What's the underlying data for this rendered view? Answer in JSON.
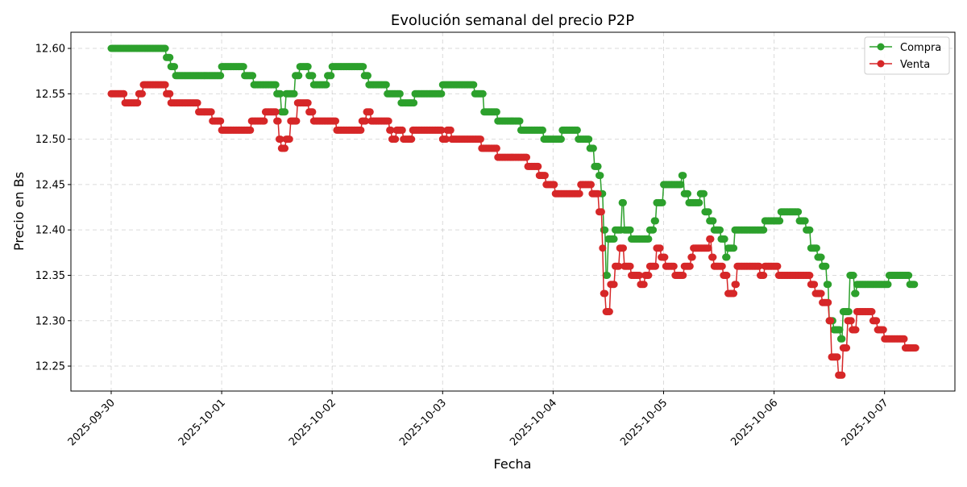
{
  "chart_data": {
    "type": "line",
    "title": "Evolución semanal del precio P2P",
    "xlabel": "Fecha",
    "ylabel": "Precio en Bs",
    "x_ticks": [
      "2025-09-30",
      "2025-10-01",
      "2025-10-02",
      "2025-10-03",
      "2025-10-04",
      "2025-10-05",
      "2025-10-06",
      "2025-10-07"
    ],
    "y_ticks": [
      "12.25",
      "12.30",
      "12.35",
      "12.40",
      "12.45",
      "12.50",
      "12.55",
      "12.60"
    ],
    "xlim": [
      "2025-09-29 15:15",
      "2025-10-07 15:17"
    ],
    "ylim": [
      12.2225,
      12.6178
    ],
    "grid": true,
    "legend_position": "top-right",
    "series": [
      {
        "name": "Compra",
        "color": "#2ca02c",
        "points": [
          [
            "2025-09-30 00:00",
            12.6
          ],
          [
            "2025-09-30 12:00",
            12.59
          ],
          [
            "2025-09-30 13:00",
            12.58
          ],
          [
            "2025-09-30 14:00",
            12.57
          ],
          [
            "2025-10-01 00:00",
            12.58
          ],
          [
            "2025-10-01 05:00",
            12.57
          ],
          [
            "2025-10-01 07:00",
            12.56
          ],
          [
            "2025-10-01 12:00",
            12.55
          ],
          [
            "2025-10-01 13:00",
            12.53
          ],
          [
            "2025-10-01 14:00",
            12.55
          ],
          [
            "2025-10-01 16:00",
            12.57
          ],
          [
            "2025-10-01 17:00",
            12.58
          ],
          [
            "2025-10-01 19:00",
            12.57
          ],
          [
            "2025-10-01 20:00",
            12.56
          ],
          [
            "2025-10-01 23:00",
            12.57
          ],
          [
            "2025-10-02 00:00",
            12.58
          ],
          [
            "2025-10-02 07:00",
            12.57
          ],
          [
            "2025-10-02 08:00",
            12.56
          ],
          [
            "2025-10-02 12:00",
            12.55
          ],
          [
            "2025-10-02 15:00",
            12.54
          ],
          [
            "2025-10-02 18:00",
            12.55
          ],
          [
            "2025-10-03 00:00",
            12.56
          ],
          [
            "2025-10-03 07:00",
            12.55
          ],
          [
            "2025-10-03 09:00",
            12.53
          ],
          [
            "2025-10-03 12:00",
            12.52
          ],
          [
            "2025-10-03 17:00",
            12.51
          ],
          [
            "2025-10-03 22:00",
            12.5
          ],
          [
            "2025-10-04 02:00",
            12.51
          ],
          [
            "2025-10-04 05:30",
            12.5
          ],
          [
            "2025-10-04 08:00",
            12.49
          ],
          [
            "2025-10-04 09:00",
            12.47
          ],
          [
            "2025-10-04 10:00",
            12.46
          ],
          [
            "2025-10-04 10:30",
            12.44
          ],
          [
            "2025-10-04 11:00",
            12.4
          ],
          [
            "2025-10-04 11:30",
            12.35
          ],
          [
            "2025-10-04 12:00",
            12.39
          ],
          [
            "2025-10-04 13:30",
            12.4
          ],
          [
            "2025-10-04 15:00",
            12.43
          ],
          [
            "2025-10-04 15:30",
            12.4
          ],
          [
            "2025-10-04 17:00",
            12.39
          ],
          [
            "2025-10-04 21:00",
            12.4
          ],
          [
            "2025-10-04 22:00",
            12.41
          ],
          [
            "2025-10-04 22:30",
            12.43
          ],
          [
            "2025-10-05 00:00",
            12.45
          ],
          [
            "2025-10-05 04:00",
            12.46
          ],
          [
            "2025-10-05 04:30",
            12.44
          ],
          [
            "2025-10-05 05:30",
            12.43
          ],
          [
            "2025-10-05 08:00",
            12.44
          ],
          [
            "2025-10-05 09:00",
            12.42
          ],
          [
            "2025-10-05 10:00",
            12.41
          ],
          [
            "2025-10-05 11:00",
            12.4
          ],
          [
            "2025-10-05 12:30",
            12.39
          ],
          [
            "2025-10-05 13:30",
            12.37
          ],
          [
            "2025-10-05 14:00",
            12.38
          ],
          [
            "2025-10-05 15:30",
            12.4
          ],
          [
            "2025-10-05 22:00",
            12.41
          ],
          [
            "2025-10-06 01:30",
            12.42
          ],
          [
            "2025-10-06 05:30",
            12.41
          ],
          [
            "2025-10-06 07:00",
            12.4
          ],
          [
            "2025-10-06 08:00",
            12.38
          ],
          [
            "2025-10-06 09:30",
            12.37
          ],
          [
            "2025-10-06 10:30",
            12.36
          ],
          [
            "2025-10-06 11:30",
            12.34
          ],
          [
            "2025-10-06 12:00",
            12.3
          ],
          [
            "2025-10-06 13:00",
            12.29
          ],
          [
            "2025-10-06 14:30",
            12.28
          ],
          [
            "2025-10-06 15:00",
            12.31
          ],
          [
            "2025-10-06 16:30",
            12.35
          ],
          [
            "2025-10-06 17:30",
            12.33
          ],
          [
            "2025-10-06 18:00",
            12.34
          ],
          [
            "2025-10-07 01:00",
            12.35
          ],
          [
            "2025-10-07 05:30",
            12.34
          ],
          [
            "2025-10-07 06:30",
            12.34
          ]
        ]
      },
      {
        "name": "Venta",
        "color": "#d62728",
        "points": [
          [
            "2025-09-30 00:00",
            12.55
          ],
          [
            "2025-09-30 03:00",
            12.54
          ],
          [
            "2025-09-30 06:00",
            12.55
          ],
          [
            "2025-09-30 07:00",
            12.56
          ],
          [
            "2025-09-30 12:00",
            12.55
          ],
          [
            "2025-09-30 13:00",
            12.54
          ],
          [
            "2025-09-30 19:00",
            12.53
          ],
          [
            "2025-09-30 22:00",
            12.52
          ],
          [
            "2025-10-01 00:00",
            12.51
          ],
          [
            "2025-10-01 06:30",
            12.52
          ],
          [
            "2025-10-01 09:30",
            12.53
          ],
          [
            "2025-10-01 12:00",
            12.52
          ],
          [
            "2025-10-01 12:30",
            12.5
          ],
          [
            "2025-10-01 13:00",
            12.49
          ],
          [
            "2025-10-01 14:00",
            12.5
          ],
          [
            "2025-10-01 15:00",
            12.52
          ],
          [
            "2025-10-01 16:30",
            12.54
          ],
          [
            "2025-10-01 19:00",
            12.53
          ],
          [
            "2025-10-01 20:00",
            12.52
          ],
          [
            "2025-10-02 01:00",
            12.51
          ],
          [
            "2025-10-02 06:30",
            12.52
          ],
          [
            "2025-10-02 07:30",
            12.53
          ],
          [
            "2025-10-02 08:30",
            12.52
          ],
          [
            "2025-10-02 12:30",
            12.51
          ],
          [
            "2025-10-02 13:00",
            12.5
          ],
          [
            "2025-10-02 14:00",
            12.51
          ],
          [
            "2025-10-02 15:30",
            12.5
          ],
          [
            "2025-10-02 17:30",
            12.51
          ],
          [
            "2025-10-03 00:00",
            12.5
          ],
          [
            "2025-10-03 01:00",
            12.51
          ],
          [
            "2025-10-03 02:00",
            12.5
          ],
          [
            "2025-10-03 08:30",
            12.49
          ],
          [
            "2025-10-03 12:00",
            12.48
          ],
          [
            "2025-10-03 18:30",
            12.47
          ],
          [
            "2025-10-03 21:00",
            12.46
          ],
          [
            "2025-10-03 22:30",
            12.45
          ],
          [
            "2025-10-04 00:30",
            12.44
          ],
          [
            "2025-10-04 06:00",
            12.45
          ],
          [
            "2025-10-04 08:30",
            12.44
          ],
          [
            "2025-10-04 10:00",
            12.42
          ],
          [
            "2025-10-04 10:45",
            12.38
          ],
          [
            "2025-10-04 11:00",
            12.33
          ],
          [
            "2025-10-04 11:30",
            12.31
          ],
          [
            "2025-10-04 12:30",
            12.34
          ],
          [
            "2025-10-04 13:30",
            12.36
          ],
          [
            "2025-10-04 14:30",
            12.38
          ],
          [
            "2025-10-04 15:30",
            12.36
          ],
          [
            "2025-10-04 17:00",
            12.35
          ],
          [
            "2025-10-04 19:00",
            12.34
          ],
          [
            "2025-10-04 20:00",
            12.35
          ],
          [
            "2025-10-04 21:00",
            12.36
          ],
          [
            "2025-10-04 22:30",
            12.38
          ],
          [
            "2025-10-04 23:30",
            12.37
          ],
          [
            "2025-10-05 00:30",
            12.36
          ],
          [
            "2025-10-05 02:30",
            12.35
          ],
          [
            "2025-10-05 04:30",
            12.36
          ],
          [
            "2025-10-05 06:00",
            12.37
          ],
          [
            "2025-10-05 06:30",
            12.38
          ],
          [
            "2025-10-05 10:00",
            12.39
          ],
          [
            "2025-10-05 10:30",
            12.37
          ],
          [
            "2025-10-05 11:00",
            12.36
          ],
          [
            "2025-10-05 13:00",
            12.35
          ],
          [
            "2025-10-05 14:00",
            12.33
          ],
          [
            "2025-10-05 15:30",
            12.34
          ],
          [
            "2025-10-05 16:00",
            12.36
          ],
          [
            "2025-10-05 21:00",
            12.35
          ],
          [
            "2025-10-05 22:00",
            12.36
          ],
          [
            "2025-10-06 01:00",
            12.35
          ],
          [
            "2025-10-06 08:00",
            12.34
          ],
          [
            "2025-10-06 09:00",
            12.33
          ],
          [
            "2025-10-06 10:30",
            12.32
          ],
          [
            "2025-10-06 12:00",
            12.3
          ],
          [
            "2025-10-06 12:30",
            12.26
          ],
          [
            "2025-10-06 14:00",
            12.24
          ],
          [
            "2025-10-06 15:00",
            12.27
          ],
          [
            "2025-10-06 16:00",
            12.3
          ],
          [
            "2025-10-06 17:00",
            12.29
          ],
          [
            "2025-10-06 18:00",
            12.31
          ],
          [
            "2025-10-06 21:30",
            12.3
          ],
          [
            "2025-10-06 22:30",
            12.29
          ],
          [
            "2025-10-07 00:00",
            12.28
          ],
          [
            "2025-10-07 04:30",
            12.27
          ],
          [
            "2025-10-07 06:45",
            12.27
          ]
        ]
      }
    ]
  }
}
